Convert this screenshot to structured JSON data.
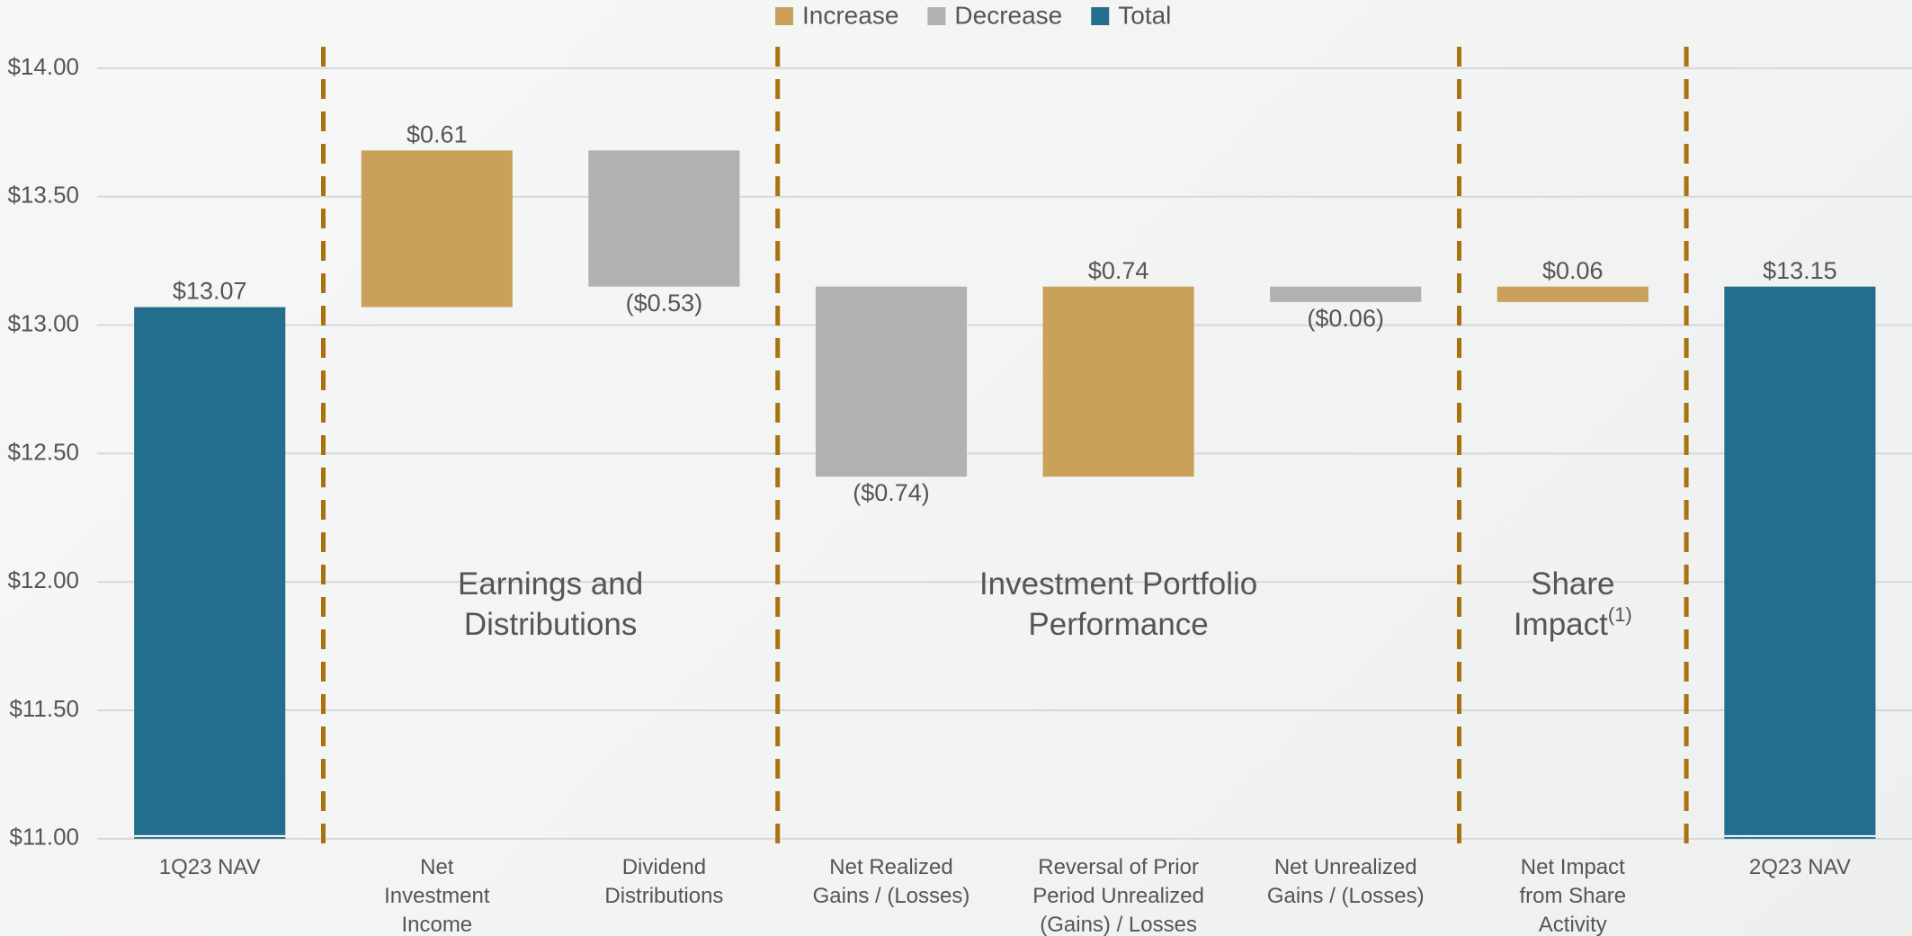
{
  "chart_data": {
    "type": "waterfall",
    "categories": [
      "1Q23 NAV",
      "Net\nInvestment\nIncome",
      "Dividend\nDistributions",
      "Net Realized\nGains / (Losses)",
      "Reversal of Prior\nPeriod Unrealized\n(Gains) / Losses",
      "Net Unrealized\nGains / (Losses)",
      "Net Impact\nfrom Share\nActivity",
      "2Q23 NAV"
    ],
    "series": [
      {
        "name": "Increase",
        "color": "#c9a15b",
        "values": [
          null,
          0.61,
          null,
          null,
          0.74,
          null,
          0.06,
          null
        ],
        "value_labels": [
          null,
          "$0.61",
          null,
          null,
          "$0.74",
          null,
          "$0.06",
          null
        ]
      },
      {
        "name": "Decrease",
        "color": "#b1b1b2",
        "values": [
          null,
          null,
          -0.53,
          -0.74,
          null,
          -0.06,
          null,
          null
        ],
        "value_labels": [
          null,
          null,
          "($0.53)",
          "($0.74)",
          null,
          "($0.06)",
          null,
          null
        ]
      },
      {
        "name": "Total",
        "color": "#236e8c",
        "values": [
          13.07,
          null,
          null,
          null,
          null,
          null,
          null,
          13.15
        ],
        "value_labels": [
          "$13.07",
          null,
          null,
          null,
          null,
          null,
          null,
          "$13.15"
        ]
      }
    ],
    "ylim": [
      11,
      14
    ],
    "yticks": [
      {
        "value": 11,
        "label": "$11.00"
      },
      {
        "value": 11.5,
        "label": "$11.50"
      },
      {
        "value": 12,
        "label": "$12.00"
      },
      {
        "value": 12.5,
        "label": "$12.50"
      },
      {
        "value": 13,
        "label": "$13.00"
      },
      {
        "value": 13.5,
        "label": "$13.50"
      },
      {
        "value": 14,
        "label": "$14.00"
      }
    ],
    "grid": true,
    "groups": [
      {
        "text": "Earnings and\nDistributions"
      },
      {
        "text": "Investment Portfolio\nPerformance"
      },
      {
        "text": "Share\nImpact",
        "superscript": "(1)"
      }
    ]
  }
}
